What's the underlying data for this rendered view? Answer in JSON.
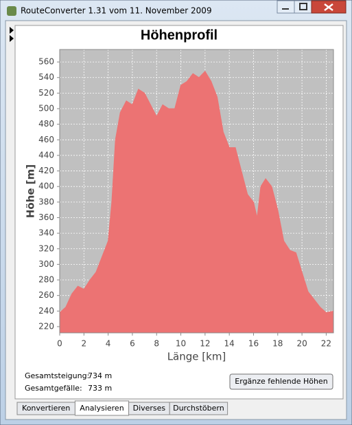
{
  "window": {
    "title": "RouteConverter 1.31 vom 11. November 2009"
  },
  "chart_data": {
    "type": "area",
    "title": "Höhenprofil",
    "x_label": "Länge [km]",
    "y_label": "Höhe [m]",
    "color": "#ec7373",
    "background": "#c0c0c0",
    "grid": true,
    "x": [
      0,
      0.5,
      1,
      1.5,
      2,
      2.5,
      3,
      3.5,
      4,
      4.3,
      4.6,
      5,
      5.5,
      6,
      6.5,
      7,
      7.5,
      8,
      8.5,
      9,
      9.5,
      10,
      10.5,
      11,
      11.5,
      12,
      12.5,
      13,
      13.5,
      14,
      14.5,
      15,
      15.5,
      16,
      16.3,
      16.6,
      17,
      17.5,
      18,
      18.5,
      19,
      19.5,
      20,
      20.5,
      21,
      21.5,
      22,
      22.6
    ],
    "values": [
      238,
      245,
      262,
      272,
      268,
      280,
      290,
      310,
      330,
      380,
      460,
      495,
      510,
      505,
      525,
      520,
      505,
      490,
      505,
      500,
      500,
      530,
      535,
      545,
      540,
      548,
      535,
      515,
      470,
      450,
      450,
      420,
      390,
      380,
      360,
      400,
      410,
      400,
      370,
      330,
      318,
      315,
      290,
      265,
      255,
      245,
      238,
      240
    ],
    "xlim": [
      0,
      22.6
    ],
    "ylim": [
      212,
      576
    ],
    "xticks": [
      0,
      2,
      4,
      6,
      8,
      10,
      12,
      14,
      16,
      18,
      20,
      22
    ],
    "yticks": [
      220,
      240,
      260,
      280,
      300,
      320,
      340,
      360,
      380,
      400,
      420,
      440,
      460,
      480,
      500,
      520,
      540,
      560
    ]
  },
  "stats": [
    {
      "label": "Gesamtsteigung:",
      "value": "734 m"
    },
    {
      "label": "Gesamtgefälle:",
      "value": "733 m"
    }
  ],
  "button": "Ergänze fehlende Höhen",
  "tabs": [
    "Konvertieren",
    "Analysieren",
    "Diverses",
    "Durchstöbern"
  ]
}
